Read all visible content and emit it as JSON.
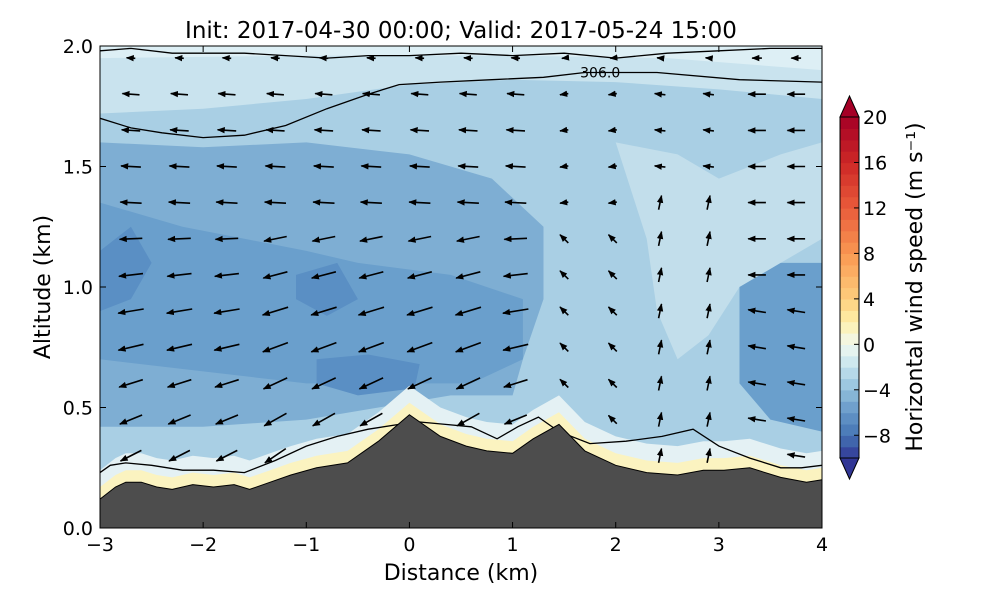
{
  "chart_data": {
    "type": "heatmap",
    "title": "Init: 2017-04-30 00:00; Valid: 2017-05-24 15:00",
    "xlabel": "Distance (km)",
    "ylabel": "Altitude (km)",
    "xlim": [
      -3,
      4
    ],
    "ylim": [
      0,
      2
    ],
    "x_ticks": [
      -3,
      -2,
      -1,
      0,
      1,
      2,
      3,
      4
    ],
    "y_ticks": [
      0.0,
      0.5,
      1.0,
      1.5,
      2.0
    ],
    "x_tick_labels": [
      "−3",
      "−2",
      "−1",
      "0",
      "1",
      "2",
      "3",
      "4"
    ],
    "y_tick_labels": [
      "0.0",
      "0.5",
      "1.0",
      "1.5",
      "2.0"
    ],
    "colorbar": {
      "label": "Horizontal wind speed (m s⁻¹)",
      "range": [
        -10,
        20
      ],
      "ticks": [
        -8,
        -4,
        0,
        4,
        8,
        12,
        16,
        20
      ],
      "tick_labels": [
        "−8",
        "−4",
        "0",
        "4",
        "8",
        "12",
        "16",
        "20"
      ],
      "extend": "both",
      "colormap": "diverging blue-yellow-red"
    },
    "terrain": {
      "color": "#4d4d4d",
      "x": [
        -3.0,
        -2.85,
        -2.75,
        -2.6,
        -2.45,
        -2.3,
        -2.1,
        -1.9,
        -1.7,
        -1.55,
        -1.35,
        -1.15,
        -0.9,
        -0.6,
        -0.3,
        0.0,
        0.3,
        0.55,
        0.75,
        1.0,
        1.2,
        1.45,
        1.7,
        2.0,
        2.3,
        2.6,
        2.85,
        3.05,
        3.3,
        3.6,
        3.85,
        4.0
      ],
      "y": [
        0.12,
        0.17,
        0.19,
        0.19,
        0.17,
        0.16,
        0.18,
        0.17,
        0.18,
        0.16,
        0.19,
        0.22,
        0.25,
        0.27,
        0.36,
        0.47,
        0.38,
        0.34,
        0.32,
        0.31,
        0.37,
        0.43,
        0.32,
        0.26,
        0.23,
        0.22,
        0.24,
        0.24,
        0.25,
        0.21,
        0.19,
        0.2
      ]
    },
    "contour_306": {
      "label": "306.0",
      "x": [
        -3.0,
        -2.7,
        -2.4,
        -2.0,
        -1.6,
        -1.2,
        -0.8,
        -0.4,
        -0.1,
        0.3,
        0.8,
        1.3,
        1.7,
        2.4,
        3.2,
        4.0
      ],
      "y": [
        1.7,
        1.66,
        1.64,
        1.62,
        1.63,
        1.67,
        1.74,
        1.8,
        1.84,
        1.85,
        1.86,
        1.87,
        1.89,
        1.89,
        1.86,
        1.85
      ]
    },
    "contour_top": {
      "x": [
        -3.0,
        -2.7,
        -2.3,
        -2.0,
        -1.6,
        -1.2,
        -0.8,
        -0.4,
        0.0,
        0.5,
        1.0,
        1.5,
        2.0,
        2.5,
        3.0,
        3.5,
        4.0
      ],
      "y": [
        1.98,
        1.99,
        1.97,
        1.97,
        1.97,
        1.96,
        1.95,
        1.96,
        1.96,
        1.97,
        1.96,
        1.97,
        1.95,
        1.97,
        1.98,
        1.99,
        1.99
      ]
    },
    "contour_low": {
      "x": [
        -3.0,
        -2.9,
        -2.75,
        -2.5,
        -2.2,
        -1.9,
        -1.6,
        -1.3,
        -1.0,
        -0.7,
        -0.4,
        -0.1,
        0.1,
        0.35,
        0.6,
        0.85,
        1.05,
        1.25,
        1.45,
        1.75,
        2.1,
        2.45,
        2.75,
        3.0,
        3.3,
        3.6,
        3.8,
        4.0
      ],
      "y": [
        0.23,
        0.26,
        0.27,
        0.26,
        0.24,
        0.24,
        0.23,
        0.28,
        0.34,
        0.38,
        0.41,
        0.43,
        0.44,
        0.43,
        0.42,
        0.37,
        0.42,
        0.46,
        0.4,
        0.35,
        0.36,
        0.38,
        0.41,
        0.34,
        0.29,
        0.25,
        0.25,
        0.26
      ]
    },
    "wind_field": {
      "x": [
        -2.7,
        -2.23,
        -1.77,
        -1.3,
        -0.83,
        -0.37,
        0.1,
        0.57,
        1.03,
        1.5,
        1.97,
        2.43,
        2.9,
        3.37,
        3.75
      ],
      "y": [
        0.3,
        0.45,
        0.6,
        0.75,
        0.9,
        1.05,
        1.2,
        1.35,
        1.5,
        1.65,
        1.8,
        1.95
      ],
      "description": "u/v wind vectors; mostly easterly (pointing left), stronger mid-levels west of x=1 km, weaker near the top and east of x=2 km"
    }
  }
}
